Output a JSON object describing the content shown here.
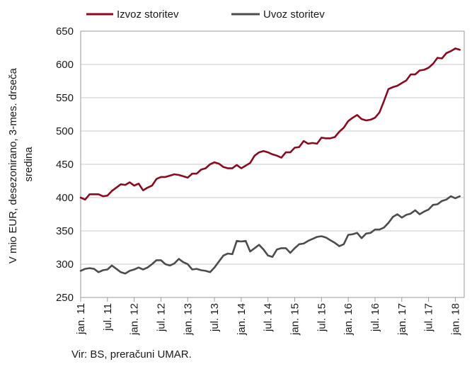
{
  "chart_data": {
    "type": "line",
    "ylabel_lines": [
      "V mio EUR, desezonirano, 3-mes. drseča",
      "sredina"
    ],
    "ylim": [
      250,
      650
    ],
    "yticks": [
      250,
      300,
      350,
      400,
      450,
      500,
      550,
      600,
      650
    ],
    "xlim": [
      0,
      86
    ],
    "xticks": [
      {
        "month": 0,
        "label": "jan. 11"
      },
      {
        "month": 6,
        "label": "jul. 11"
      },
      {
        "month": 12,
        "label": "jan. 12"
      },
      {
        "month": 18,
        "label": "jul. 12"
      },
      {
        "month": 24,
        "label": "jan. 13"
      },
      {
        "month": 30,
        "label": "jul. 13"
      },
      {
        "month": 36,
        "label": "jan. 14"
      },
      {
        "month": 42,
        "label": "jul. 14"
      },
      {
        "month": 48,
        "label": "jan. 15"
      },
      {
        "month": 54,
        "label": "jul. 15"
      },
      {
        "month": 60,
        "label": "jan. 16"
      },
      {
        "month": 66,
        "label": "jul. 16"
      },
      {
        "month": 72,
        "label": "jan. 17"
      },
      {
        "month": 78,
        "label": "jul. 17"
      },
      {
        "month": 84,
        "label": "jan. 18"
      }
    ],
    "grid": "horizontal",
    "legend_position": "top",
    "series": [
      {
        "name": "Izvoz storitev",
        "color": "#8b0a1e",
        "values": [
          400,
          397,
          405,
          405,
          405,
          402,
          403,
          410,
          415,
          420,
          419,
          423,
          418,
          421,
          411,
          415,
          418,
          428,
          431,
          431,
          433,
          435,
          434,
          432,
          430,
          436,
          436,
          442,
          444,
          450,
          453,
          451,
          446,
          444,
          444,
          449,
          444,
          448,
          452,
          463,
          468,
          470,
          468,
          465,
          463,
          460,
          468,
          468,
          475,
          476,
          485,
          481,
          482,
          481,
          490,
          489,
          489,
          491,
          499,
          505,
          515,
          520,
          524,
          518,
          516,
          517,
          520,
          528,
          545,
          563,
          566,
          568,
          572,
          576,
          585,
          585,
          591,
          592,
          595,
          601,
          610,
          609,
          617,
          620,
          624,
          622
        ]
      },
      {
        "name": "Uvoz storitev",
        "color": "#4d4d4d",
        "values": [
          290,
          293,
          294,
          293,
          288,
          291,
          292,
          298,
          293,
          288,
          286,
          290,
          292,
          295,
          292,
          295,
          300,
          306,
          306,
          300,
          298,
          301,
          308,
          303,
          300,
          292,
          293,
          291,
          290,
          288,
          295,
          304,
          313,
          316,
          315,
          335,
          334,
          335,
          319,
          324,
          329,
          322,
          313,
          311,
          322,
          324,
          324,
          317,
          324,
          330,
          331,
          335,
          338,
          341,
          342,
          340,
          336,
          332,
          327,
          330,
          344,
          345,
          347,
          339,
          346,
          347,
          352,
          352,
          355,
          362,
          371,
          375,
          370,
          374,
          376,
          381,
          375,
          379,
          382,
          389,
          390,
          395,
          397,
          402,
          399,
          402
        ]
      }
    ],
    "source_note": "Vir: BS, preračuni UMAR."
  }
}
